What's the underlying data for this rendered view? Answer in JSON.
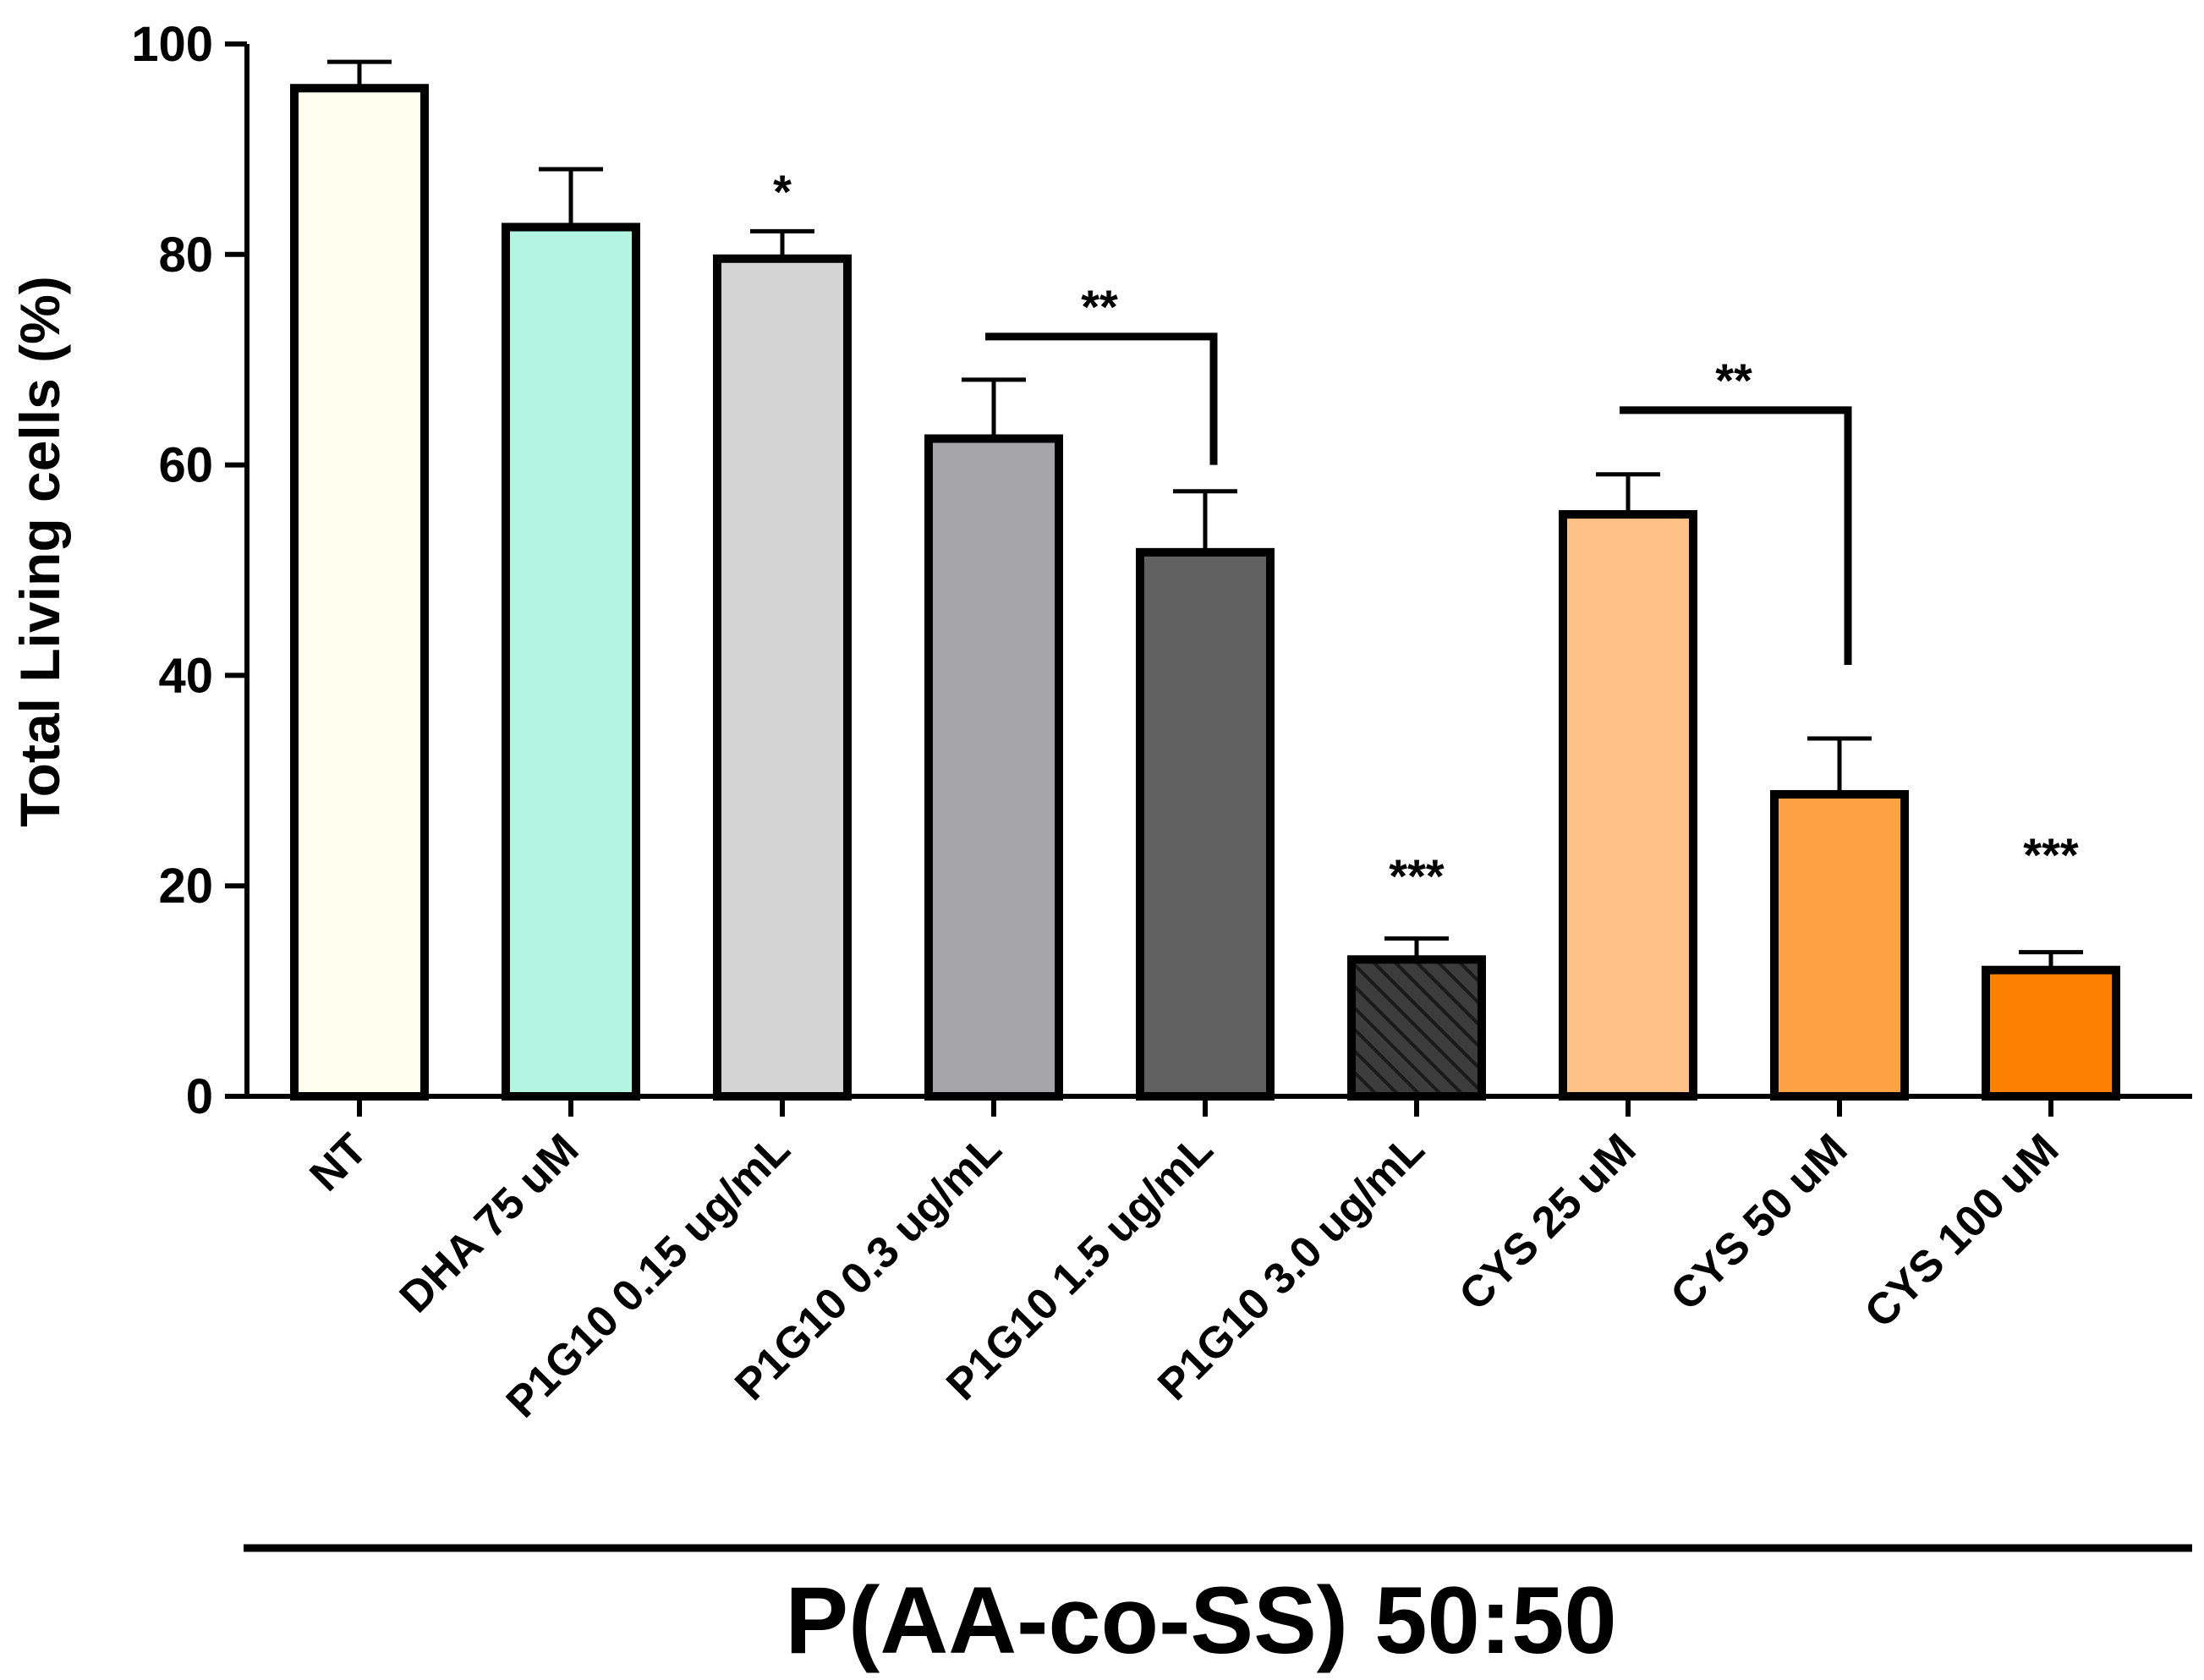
{
  "chart_data": {
    "type": "bar",
    "title": "",
    "xlabel": "",
    "ylabel": "Total Living cells (%)",
    "ylim": [
      0,
      100
    ],
    "yticks": [
      0,
      20,
      40,
      60,
      80,
      100
    ],
    "grid": false,
    "group_label": "P(AA-co-SS) 50:50",
    "categories": [
      "NT",
      "DHA 75 uM",
      "P1G10 0.15 ug/mL",
      "P1G10 0.3 ug/mL",
      "P1G10 1.5 ug/mL",
      "P1G10 3.0 ug/mL",
      "CYS 25 uM",
      "CYS 50 uM",
      "CYS 100 uM"
    ],
    "values": [
      95.8,
      82.6,
      79.6,
      62.5,
      51.7,
      13.0,
      55.3,
      28.7,
      12.0
    ],
    "errors": [
      2.5,
      5.5,
      2.6,
      5.6,
      5.8,
      2.0,
      3.8,
      5.3,
      1.7
    ],
    "colors": [
      "#fffff0",
      "#b3f5e0",
      "#d4d4d4",
      "#a6a6a8",
      "#616161",
      "#3c3c3c",
      "#fdc187",
      "#fda244",
      "#fd8000"
    ],
    "hatched": [
      false,
      false,
      false,
      false,
      false,
      true,
      false,
      false,
      false
    ],
    "significance": [
      {
        "category_index": 2,
        "label": "*",
        "at": 86
      },
      {
        "category_index": 5,
        "label": "***",
        "at": 21
      },
      {
        "category_index": 8,
        "label": "***",
        "at": 23
      }
    ],
    "brackets": [
      {
        "from": 3,
        "to": 4,
        "label": "**",
        "level": 72.2,
        "drop_to": 60
      },
      {
        "from": 6,
        "to": 7,
        "label": "**",
        "level": 65.2,
        "drop_to": 41
      }
    ]
  }
}
